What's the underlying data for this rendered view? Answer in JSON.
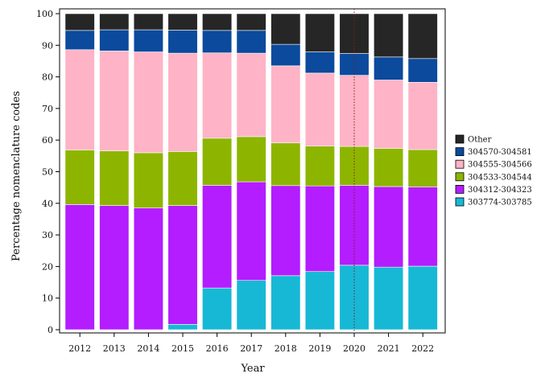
{
  "chart_data": {
    "type": "bar",
    "stacked": true,
    "title": "",
    "xlabel": "Year",
    "ylabel": "Percentage nomenclature codes",
    "ylim": [
      0,
      100
    ],
    "yticks": [
      0,
      10,
      20,
      30,
      40,
      50,
      60,
      70,
      80,
      90,
      100
    ],
    "categories": [
      "2012",
      "2013",
      "2014",
      "2015",
      "2016",
      "2017",
      "2018",
      "2019",
      "2020",
      "2021",
      "2022"
    ],
    "legend_position": "right",
    "reference_line": {
      "x": "2020",
      "style": "dotted",
      "color": "#8b1a1a"
    },
    "series": [
      {
        "name": "303774-303785",
        "color": "#17b8d6",
        "values": [
          0,
          0,
          0,
          1.7,
          13.2,
          15.6,
          17.1,
          18.4,
          20.4,
          19.8,
          20.1
        ]
      },
      {
        "name": "304312-304323",
        "color": "#b31dff",
        "values": [
          39.6,
          39.3,
          38.5,
          37.6,
          32.5,
          31.2,
          28.5,
          27.1,
          25.3,
          25.5,
          25.1
        ]
      },
      {
        "name": "304533-304544",
        "color": "#8db500",
        "values": [
          17.3,
          17.3,
          17.5,
          17.1,
          14.9,
          14.3,
          13.5,
          12.6,
          12.3,
          12.1,
          11.8
        ]
      },
      {
        "name": "304555-304566",
        "color": "#ffb3c6",
        "values": [
          31.7,
          31.6,
          31.9,
          31.1,
          27.0,
          26.4,
          24.4,
          23.1,
          22.5,
          21.6,
          21.3
        ]
      },
      {
        "name": "304570-304581",
        "color": "#0b4a9c",
        "values": [
          6.1,
          6.7,
          7.0,
          7.3,
          7.1,
          7.2,
          6.8,
          6.7,
          6.9,
          7.3,
          7.5
        ]
      },
      {
        "name": "Other",
        "color": "#262626",
        "values": [
          5.3,
          5.1,
          5.1,
          5.2,
          5.3,
          5.3,
          9.7,
          12.1,
          12.6,
          13.7,
          14.2
        ]
      }
    ]
  }
}
